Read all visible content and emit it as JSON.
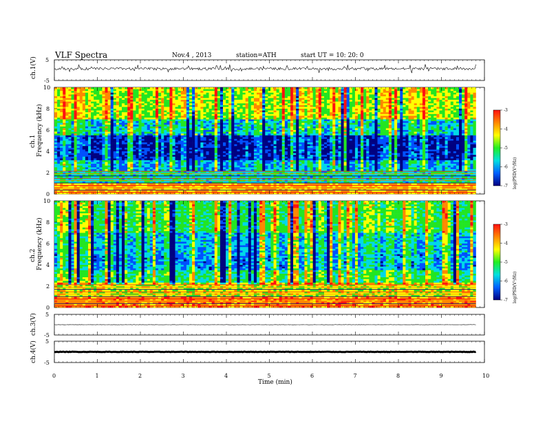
{
  "header": {
    "title": "VLF  Spectra",
    "date": "Nov.4  , 2013",
    "station": "station=ATH",
    "start": "start  UT  =    10: 20: 0"
  },
  "chart_data": [
    {
      "type": "line",
      "ylabel": "ch.1(V)",
      "ylim": [
        -5,
        5
      ],
      "yticks": [
        "5",
        "-5"
      ],
      "description_level": 0.7
    },
    {
      "type": "heatmap",
      "ylabel_top": "ch.1",
      "ylabel": "Frequency  (kHz)",
      "ylim": [
        0,
        10
      ],
      "yticks": [
        "0",
        "2",
        "4",
        "6",
        "8",
        "10"
      ],
      "colorbar": {
        "label": "log(PSD(V²/Hz)",
        "range": [
          -7,
          -3
        ],
        "ticks": [
          "-3",
          "-4",
          "-5",
          "-6",
          "-7"
        ],
        "colors": [
          "#ff1010",
          "#ff8800",
          "#ffff00",
          "#22ee22",
          "#00e0e0",
          "#0060ff",
          "#000080"
        ]
      },
      "dominant_band_khz": [
        3.5,
        5.5
      ]
    },
    {
      "type": "heatmap",
      "ylabel_top": "ch.2",
      "ylabel": "Frequency  (kHz)",
      "ylim": [
        0,
        10
      ],
      "yticks": [
        "0",
        "2",
        "4",
        "6",
        "8",
        "10"
      ],
      "colorbar": {
        "label": "log(PSD(V²/Hz)",
        "range": [
          -7,
          -3
        ],
        "ticks": [
          "-3",
          "-4",
          "-5",
          "-6",
          "-7"
        ],
        "colors": [
          "#ff1010",
          "#ff8800",
          "#ffff00",
          "#22ee22",
          "#00e0e0",
          "#0060ff",
          "#000080"
        ]
      }
    },
    {
      "type": "line",
      "ylabel": "ch.3(V)",
      "ylim": [
        -5,
        5
      ],
      "yticks": [
        "5",
        "-5"
      ],
      "level": 0
    },
    {
      "type": "line",
      "ylabel": "ch.4(V)",
      "ylim": [
        -5,
        5
      ],
      "yticks": [
        "5",
        "-5"
      ],
      "level": 0
    }
  ],
  "xaxis": {
    "label": "Time  (min)",
    "range": [
      0,
      10
    ],
    "ticks": [
      "0",
      "1",
      "2",
      "3",
      "4",
      "5",
      "6",
      "7",
      "8",
      "9",
      "10"
    ],
    "data_end": 9.8
  },
  "colors": {
    "navy": "#000080",
    "blue": "#0050ff",
    "cyan": "#00d8e8",
    "green": "#22e522",
    "yellow": "#ffff00",
    "orange": "#ff8800",
    "red": "#ff1010"
  }
}
